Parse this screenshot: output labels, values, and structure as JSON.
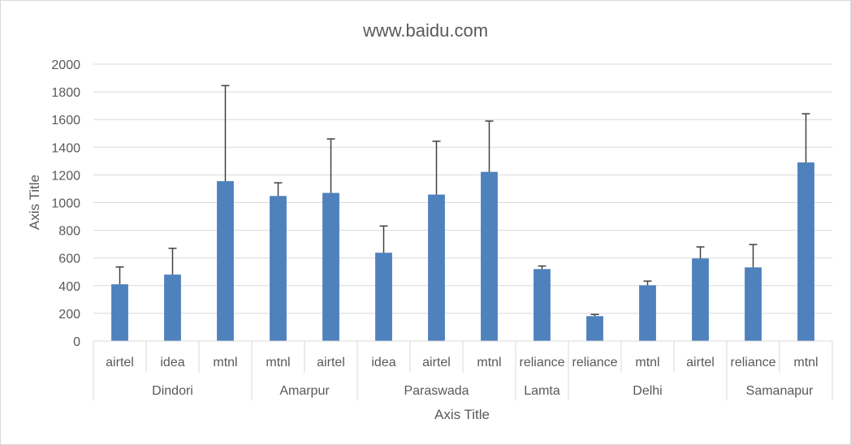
{
  "chart_data": {
    "type": "bar",
    "title": "www.baidu.com",
    "xlabel": "Axis Title",
    "ylabel": "Axis Title",
    "ylim": [
      0,
      2000
    ],
    "yticks": [
      0,
      200,
      400,
      600,
      800,
      1000,
      1200,
      1400,
      1600,
      1800,
      2000
    ],
    "grid": true,
    "bar_color": "#4f81bd",
    "error_bar_color": "#404040",
    "groups": [
      {
        "name": "Dindori",
        "categories": [
          "airtel",
          "idea",
          "mtnl"
        ],
        "values": [
          410,
          480,
          1155
        ],
        "errors": [
          125,
          190,
          690
        ]
      },
      {
        "name": "Amarpur",
        "categories": [
          "mtnl",
          "airtel"
        ],
        "values": [
          1048,
          1070
        ],
        "errors": [
          95,
          390
        ]
      },
      {
        "name": "Paraswada",
        "categories": [
          "idea",
          "airtel",
          "mtnl"
        ],
        "values": [
          638,
          1058,
          1222
        ],
        "errors": [
          193,
          385,
          367
        ]
      },
      {
        "name": "Lamta",
        "categories": [
          "reliance"
        ],
        "values": [
          520
        ],
        "errors": [
          22
        ]
      },
      {
        "name": "Delhi",
        "categories": [
          "reliance",
          "mtnl",
          "airtel"
        ],
        "values": [
          180,
          403,
          597
        ],
        "errors": [
          12,
          30,
          83
        ]
      },
      {
        "name": "Samanapur",
        "categories": [
          "reliance",
          "mtnl"
        ],
        "values": [
          532,
          1290
        ],
        "errors": [
          165,
          352
        ]
      }
    ]
  }
}
